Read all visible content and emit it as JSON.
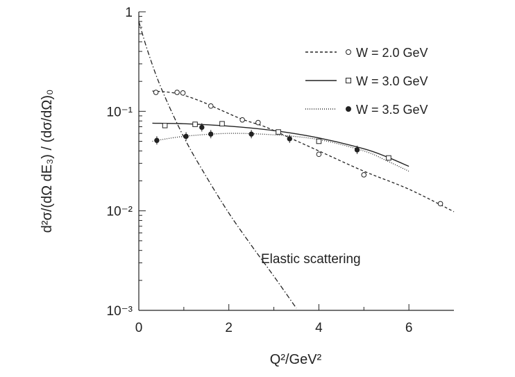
{
  "chart_data": {
    "type": "line",
    "title": "",
    "xlabel": "Q²/GeV²",
    "ylabel": "d²σ/(dΩ dE₃) / (dσ/dΩ)₀",
    "xlim": [
      0,
      7
    ],
    "ylim": [
      0.001,
      1
    ],
    "y_scale": "log",
    "grid": false,
    "legend_position": "top-right",
    "x_ticks": [
      {
        "value": 0,
        "label": "0"
      },
      {
        "value": 2,
        "label": "2"
      },
      {
        "value": 4,
        "label": "4"
      },
      {
        "value": 6,
        "label": "6"
      }
    ],
    "y_ticks": [
      {
        "value": 1,
        "label": "1"
      },
      {
        "value": 0.1,
        "label": "10⁻¹"
      },
      {
        "value": 0.01,
        "label": "10⁻²"
      },
      {
        "value": 0.001,
        "label": "10⁻³"
      }
    ],
    "series": [
      {
        "name": "W = 2.0 GeV",
        "line_style": "dashed",
        "marker": "open-circle",
        "points": [
          {
            "x": 0.38,
            "y": 0.155
          },
          {
            "x": 0.85,
            "y": 0.155
          },
          {
            "x": 0.98,
            "y": 0.153
          },
          {
            "x": 1.6,
            "y": 0.113
          },
          {
            "x": 2.3,
            "y": 0.082
          },
          {
            "x": 2.65,
            "y": 0.077
          },
          {
            "x": 4.0,
            "y": 0.037
          },
          {
            "x": 5.0,
            "y": 0.023
          },
          {
            "x": 6.7,
            "y": 0.0118
          }
        ],
        "curve": [
          {
            "x": 0.3,
            "y": 0.16
          },
          {
            "x": 0.7,
            "y": 0.155
          },
          {
            "x": 1.0,
            "y": 0.145
          },
          {
            "x": 1.4,
            "y": 0.125
          },
          {
            "x": 1.8,
            "y": 0.104
          },
          {
            "x": 2.3,
            "y": 0.083
          },
          {
            "x": 2.8,
            "y": 0.07
          },
          {
            "x": 3.4,
            "y": 0.053
          },
          {
            "x": 4.0,
            "y": 0.04
          },
          {
            "x": 5.0,
            "y": 0.025
          },
          {
            "x": 6.0,
            "y": 0.0165
          },
          {
            "x": 7.0,
            "y": 0.0098
          }
        ]
      },
      {
        "name": "W = 3.0 GeV",
        "line_style": "solid",
        "marker": "open-square",
        "points": [
          {
            "x": 0.58,
            "y": 0.072
          },
          {
            "x": 1.25,
            "y": 0.074
          },
          {
            "x": 1.85,
            "y": 0.075
          },
          {
            "x": 3.1,
            "y": 0.062
          },
          {
            "x": 4.0,
            "y": 0.05
          },
          {
            "x": 5.55,
            "y": 0.034
          }
        ],
        "curve": [
          {
            "x": 0.3,
            "y": 0.076
          },
          {
            "x": 1.0,
            "y": 0.075
          },
          {
            "x": 2.0,
            "y": 0.071
          },
          {
            "x": 3.0,
            "y": 0.064
          },
          {
            "x": 4.0,
            "y": 0.054
          },
          {
            "x": 5.0,
            "y": 0.042
          },
          {
            "x": 5.5,
            "y": 0.035
          },
          {
            "x": 6.0,
            "y": 0.028
          }
        ]
      },
      {
        "name": "W = 3.5 GeV",
        "line_style": "dotted",
        "marker": "filled-circle",
        "points": [
          {
            "x": 0.4,
            "y": 0.051
          },
          {
            "x": 1.05,
            "y": 0.056
          },
          {
            "x": 1.4,
            "y": 0.069
          },
          {
            "x": 1.6,
            "y": 0.059
          },
          {
            "x": 2.5,
            "y": 0.059
          },
          {
            "x": 3.35,
            "y": 0.053
          },
          {
            "x": 4.85,
            "y": 0.041
          }
        ],
        "curve": [
          {
            "x": 0.3,
            "y": 0.05
          },
          {
            "x": 1.0,
            "y": 0.056
          },
          {
            "x": 2.0,
            "y": 0.06
          },
          {
            "x": 3.0,
            "y": 0.058
          },
          {
            "x": 4.0,
            "y": 0.052
          },
          {
            "x": 5.0,
            "y": 0.04
          },
          {
            "x": 5.5,
            "y": 0.032
          },
          {
            "x": 6.0,
            "y": 0.025
          }
        ]
      },
      {
        "name": "Elastic scattering",
        "line_style": "dash-dot",
        "marker": "none",
        "points": [],
        "curve": [
          {
            "x": 0.0,
            "y": 0.8
          },
          {
            "x": 0.2,
            "y": 0.4
          },
          {
            "x": 0.5,
            "y": 0.17
          },
          {
            "x": 1.0,
            "y": 0.055
          },
          {
            "x": 1.5,
            "y": 0.022
          },
          {
            "x": 2.0,
            "y": 0.0095
          },
          {
            "x": 2.5,
            "y": 0.0045
          },
          {
            "x": 3.0,
            "y": 0.0022
          },
          {
            "x": 3.5,
            "y": 0.00105
          }
        ]
      }
    ],
    "annotations": [
      {
        "text": "Elastic scattering",
        "x": 2.75,
        "y": 0.0025
      }
    ]
  }
}
